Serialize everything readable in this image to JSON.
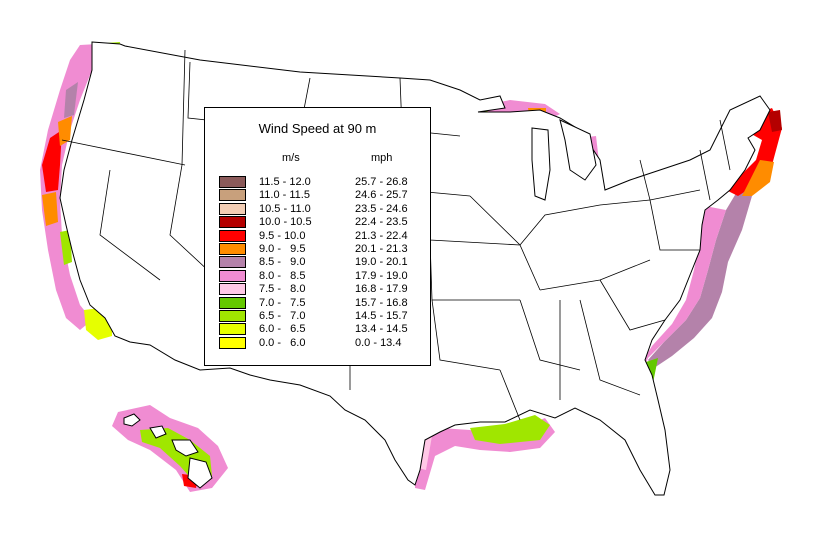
{
  "legend": {
    "title": "Wind Speed at 90 m",
    "unit_ms": "m/s",
    "unit_mph": "mph",
    "classes": [
      {
        "ms": "11.5 - 12.0",
        "mph": "25.7 - 26.8",
        "color": "#8B5A5A"
      },
      {
        "ms": "11.0 - 11.5",
        "mph": "24.6 - 25.7",
        "color": "#C8A07C"
      },
      {
        "ms": "10.5 - 11.0",
        "mph": "23.5 - 24.6",
        "color": "#F2CDB4"
      },
      {
        "ms": "10.0 - 10.5",
        "mph": "22.4 - 23.5",
        "color": "#B40000"
      },
      {
        "ms": "9.5 - 10.0",
        "mph": "21.3 - 22.4",
        "color": "#FF0000"
      },
      {
        "ms": "9.0 -   9.5",
        "mph": "20.1 - 21.3",
        "color": "#FF8C00"
      },
      {
        "ms": "8.5 -   9.0",
        "mph": "19.0 - 20.1",
        "color": "#B482AA"
      },
      {
        "ms": "8.0 -   8.5",
        "mph": "17.9 - 19.0",
        "color": "#F08CD2"
      },
      {
        "ms": "7.5 -   8.0",
        "mph": "16.8 - 17.9",
        "color": "#FFC8E6"
      },
      {
        "ms": "7.0 -   7.5",
        "mph": "15.7 - 16.8",
        "color": "#64C800"
      },
      {
        "ms": "6.5 -   7.0",
        "mph": "14.5 - 15.7",
        "color": "#A0E600"
      },
      {
        "ms": "6.0 -   6.5",
        "mph": "13.4 - 14.5",
        "color": "#E6FF00"
      },
      {
        "ms": "0.0 -   6.0",
        "mph": "0.0 - 13.4",
        "color": "#FFFF00"
      }
    ]
  },
  "colors": {
    "land": "#ffffff",
    "border": "#000000",
    "state_line": "#555555"
  }
}
